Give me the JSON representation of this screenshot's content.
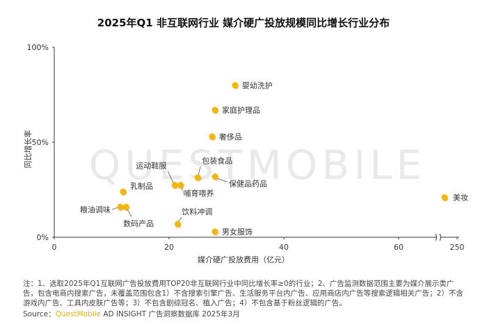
{
  "chart_data": {
    "type": "scatter",
    "title": "2025年Q1 非互联网行业 媒介硬广投放规模同比增长行业分布",
    "xlabel": "媒介硬广投放费用（亿元）",
    "ylabel": "同比增长率",
    "xticks": [
      "0",
      "20",
      "40",
      "60",
      "250"
    ],
    "yticks": [
      "0%",
      "50%",
      "100%"
    ],
    "xlim": [
      0,
      70
    ],
    "ylim": [
      0,
      100
    ],
    "axis_break": "x",
    "series": [
      {
        "points": [
          {
            "label": "婴幼洗护",
            "x": 31.5,
            "y": 80.0
          },
          {
            "label": "家庭护理品",
            "x": 28.0,
            "y": 67.0
          },
          {
            "label": "奢侈品",
            "x": 27.5,
            "y": 53.0
          },
          {
            "label": "运动鞋服",
            "x": 21.0,
            "y": 27.5
          },
          {
            "label": "哺育喂养",
            "x": 22.0,
            "y": 27.5
          },
          {
            "label": "包装食品",
            "x": 25.0,
            "y": 31.5
          },
          {
            "label": "保健品药品",
            "x": 28.0,
            "y": 32.0
          },
          {
            "label": "乳制品",
            "x": 12.0,
            "y": 24.0
          },
          {
            "label": "粮油调味",
            "x": 11.5,
            "y": 16.0
          },
          {
            "label": "数码产品",
            "x": 12.5,
            "y": 16.0
          },
          {
            "label": "饮料冲调",
            "x": 21.5,
            "y": 7.0
          },
          {
            "label": "男女服饰",
            "x": 28.0,
            "y": 3.0
          },
          {
            "label": "美妆",
            "x": 68.0,
            "y": 21.0
          }
        ]
      }
    ],
    "point_color": "#f2b705",
    "watermark": "QUESTMOBILE"
  },
  "footnote": "注：1、选取2025年Q1互联网广告投放费用TOP20非互联网行业中同比增长率≥0的行业；2、广告监测数据范围主要为媒介展示类广告，包含电商内搜索广告，未覆盖范围包含1）不含搜索引擎广告、生活服务平台内广告、应用商店内广告等搜索逻辑相关广告；2）不含游戏内广告、工具内皮肤广告等；3）不包含剧综冠名、植入广告；4）不包含基于粉丝逻辑的广告。",
  "source": {
    "prefix": "Source：",
    "brand": "QuestMobile",
    "rest": " AD INSIGHT 广告洞察数据库 2025年3月"
  }
}
